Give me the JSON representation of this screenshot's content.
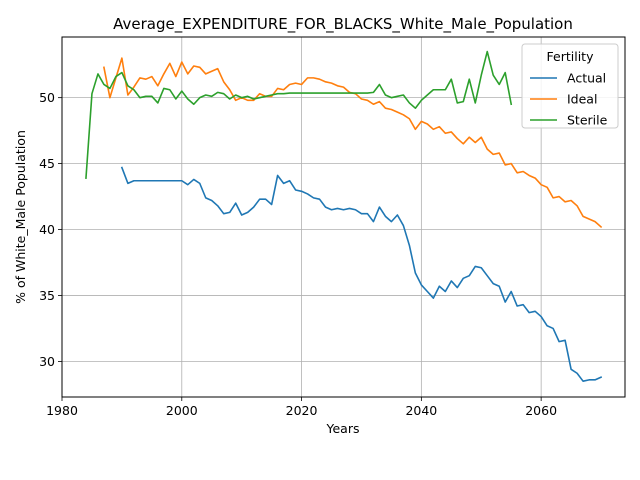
{
  "chart_data": {
    "type": "line",
    "title": "Average_EXPENDITURE_FOR_BLACKS_White_Male_Population",
    "xlabel": "Years",
    "ylabel": "% of White_Male Population",
    "xlim": [
      1980,
      2074
    ],
    "ylim": [
      27.3,
      54.6
    ],
    "xticks": [
      1980,
      2000,
      2020,
      2040,
      2060
    ],
    "yticks": [
      30,
      35,
      40,
      45,
      50
    ],
    "xtick_labels": [
      "1980",
      "2000",
      "2020",
      "2040",
      "2060"
    ],
    "ytick_labels": [
      "30",
      "35",
      "40",
      "45",
      "50"
    ],
    "grid": true,
    "legend": {
      "title": "Fertility",
      "position": "top-right"
    },
    "series": [
      {
        "name": "Actual",
        "color": "#1f77b4",
        "x": [
          1990,
          1991,
          1992,
          1993,
          1994,
          1995,
          1996,
          1997,
          1998,
          1999,
          2000,
          2001,
          2002,
          2003,
          2004,
          2005,
          2006,
          2007,
          2008,
          2009,
          2010,
          2011,
          2012,
          2013,
          2014,
          2015,
          2016,
          2017,
          2018,
          2019,
          2020,
          2021,
          2022,
          2023,
          2024,
          2025,
          2026,
          2027,
          2028,
          2029,
          2030,
          2031,
          2032,
          2033,
          2034,
          2035,
          2036,
          2037,
          2038,
          2039,
          2040,
          2041,
          2042,
          2043,
          2044,
          2045,
          2046,
          2047,
          2048,
          2049,
          2050,
          2051,
          2052,
          2053,
          2054,
          2055,
          2056,
          2057,
          2058,
          2059,
          2060,
          2061,
          2062,
          2063,
          2064,
          2065,
          2066,
          2067,
          2068,
          2069,
          2070
        ],
        "values": [
          44.7,
          43.5,
          43.7,
          43.7,
          43.7,
          43.7,
          43.7,
          43.7,
          43.7,
          43.7,
          43.7,
          43.4,
          43.8,
          43.5,
          42.4,
          42.2,
          41.8,
          41.2,
          41.3,
          42.0,
          41.1,
          41.3,
          41.7,
          42.3,
          42.3,
          41.9,
          44.1,
          43.5,
          43.7,
          43.0,
          42.9,
          42.7,
          42.4,
          42.3,
          41.7,
          41.5,
          41.6,
          41.5,
          41.6,
          41.5,
          41.2,
          41.2,
          40.6,
          41.7,
          41.0,
          40.6,
          41.1,
          40.3,
          38.8,
          36.7,
          35.8,
          35.3,
          34.8,
          35.7,
          35.3,
          36.1,
          35.6,
          36.3,
          36.5,
          37.2,
          37.1,
          36.5,
          35.9,
          35.7,
          34.5,
          35.3,
          34.2,
          34.3,
          33.7,
          33.8,
          33.4,
          32.7,
          32.5,
          31.5,
          31.6,
          29.4,
          29.1,
          28.5,
          28.6,
          28.6,
          28.8
        ]
      },
      {
        "name": "Ideal",
        "color": "#ff7f0e",
        "x": [
          1987,
          1988,
          1989,
          1990,
          1991,
          1992,
          1993,
          1994,
          1995,
          1996,
          1997,
          1998,
          1999,
          2000,
          2001,
          2002,
          2003,
          2004,
          2005,
          2006,
          2007,
          2008,
          2009,
          2010,
          2011,
          2012,
          2013,
          2014,
          2015,
          2016,
          2017,
          2018,
          2019,
          2020,
          2021,
          2022,
          2023,
          2024,
          2025,
          2026,
          2027,
          2028,
          2029,
          2030,
          2031,
          2032,
          2033,
          2034,
          2035,
          2036,
          2037,
          2038,
          2039,
          2040,
          2041,
          2042,
          2043,
          2044,
          2045,
          2046,
          2047,
          2048,
          2049,
          2050,
          2051,
          2052,
          2053,
          2054,
          2055,
          2056,
          2057,
          2058,
          2059,
          2060,
          2061,
          2062,
          2063,
          2064,
          2065,
          2066,
          2067,
          2068,
          2069,
          2070
        ],
        "values": [
          52.3,
          50.0,
          51.5,
          53.0,
          50.2,
          50.8,
          51.5,
          51.4,
          51.6,
          50.9,
          51.8,
          52.6,
          51.6,
          52.7,
          51.8,
          52.4,
          52.3,
          51.8,
          52.0,
          52.2,
          51.2,
          50.6,
          49.8,
          50.0,
          49.8,
          49.8,
          50.3,
          50.1,
          50.1,
          50.7,
          50.6,
          51.0,
          51.1,
          51.0,
          51.5,
          51.5,
          51.4,
          51.2,
          51.1,
          50.9,
          50.8,
          50.4,
          50.3,
          49.9,
          49.8,
          49.5,
          49.7,
          49.2,
          49.1,
          48.9,
          48.7,
          48.4,
          47.6,
          48.2,
          48.0,
          47.6,
          47.8,
          47.3,
          47.4,
          46.9,
          46.5,
          47.0,
          46.6,
          47.0,
          46.1,
          45.7,
          45.8,
          44.9,
          45.0,
          44.3,
          44.4,
          44.1,
          43.9,
          43.4,
          43.2,
          42.4,
          42.5,
          42.1,
          42.2,
          41.8,
          41.0,
          40.8,
          40.6,
          40.2
        ]
      },
      {
        "name": "Sterile",
        "color": "#2ca02c",
        "x": [
          1984,
          1985,
          1986,
          1987,
          1988,
          1989,
          1990,
          1991,
          1992,
          1993,
          1994,
          1995,
          1996,
          1997,
          1998,
          1999,
          2000,
          2001,
          2002,
          2003,
          2004,
          2005,
          2006,
          2007,
          2008,
          2009,
          2010,
          2011,
          2012,
          2013,
          2014,
          2015,
          2016,
          2017,
          2018,
          2019,
          2020,
          2021,
          2022,
          2023,
          2024,
          2025,
          2026,
          2027,
          2028,
          2029,
          2030,
          2031,
          2032,
          2033,
          2034,
          2035,
          2036,
          2037,
          2038,
          2039,
          2040,
          2041,
          2042,
          2043,
          2044,
          2045,
          2046,
          2047,
          2048,
          2049,
          2050,
          2051,
          2052,
          2053,
          2054,
          2055
        ],
        "values": [
          43.9,
          50.3,
          51.8,
          51.0,
          50.7,
          51.6,
          51.9,
          50.9,
          50.6,
          50.0,
          50.1,
          50.1,
          49.6,
          50.7,
          50.6,
          49.9,
          50.5,
          49.9,
          49.5,
          50.0,
          50.2,
          50.1,
          50.4,
          50.3,
          49.9,
          50.2,
          50.0,
          50.1,
          49.9,
          50.0,
          50.1,
          50.2,
          50.3,
          50.3,
          50.35,
          50.35,
          50.35,
          50.35,
          50.35,
          50.35,
          50.35,
          50.35,
          50.35,
          50.35,
          50.35,
          50.35,
          50.35,
          50.35,
          50.4,
          51.0,
          50.2,
          50.0,
          50.1,
          50.2,
          49.6,
          49.2,
          49.8,
          50.2,
          50.6,
          50.6,
          50.6,
          51.4,
          49.6,
          49.7,
          51.4,
          49.6,
          51.7,
          53.5,
          51.7,
          51.0,
          51.9,
          49.5
        ]
      }
    ]
  }
}
